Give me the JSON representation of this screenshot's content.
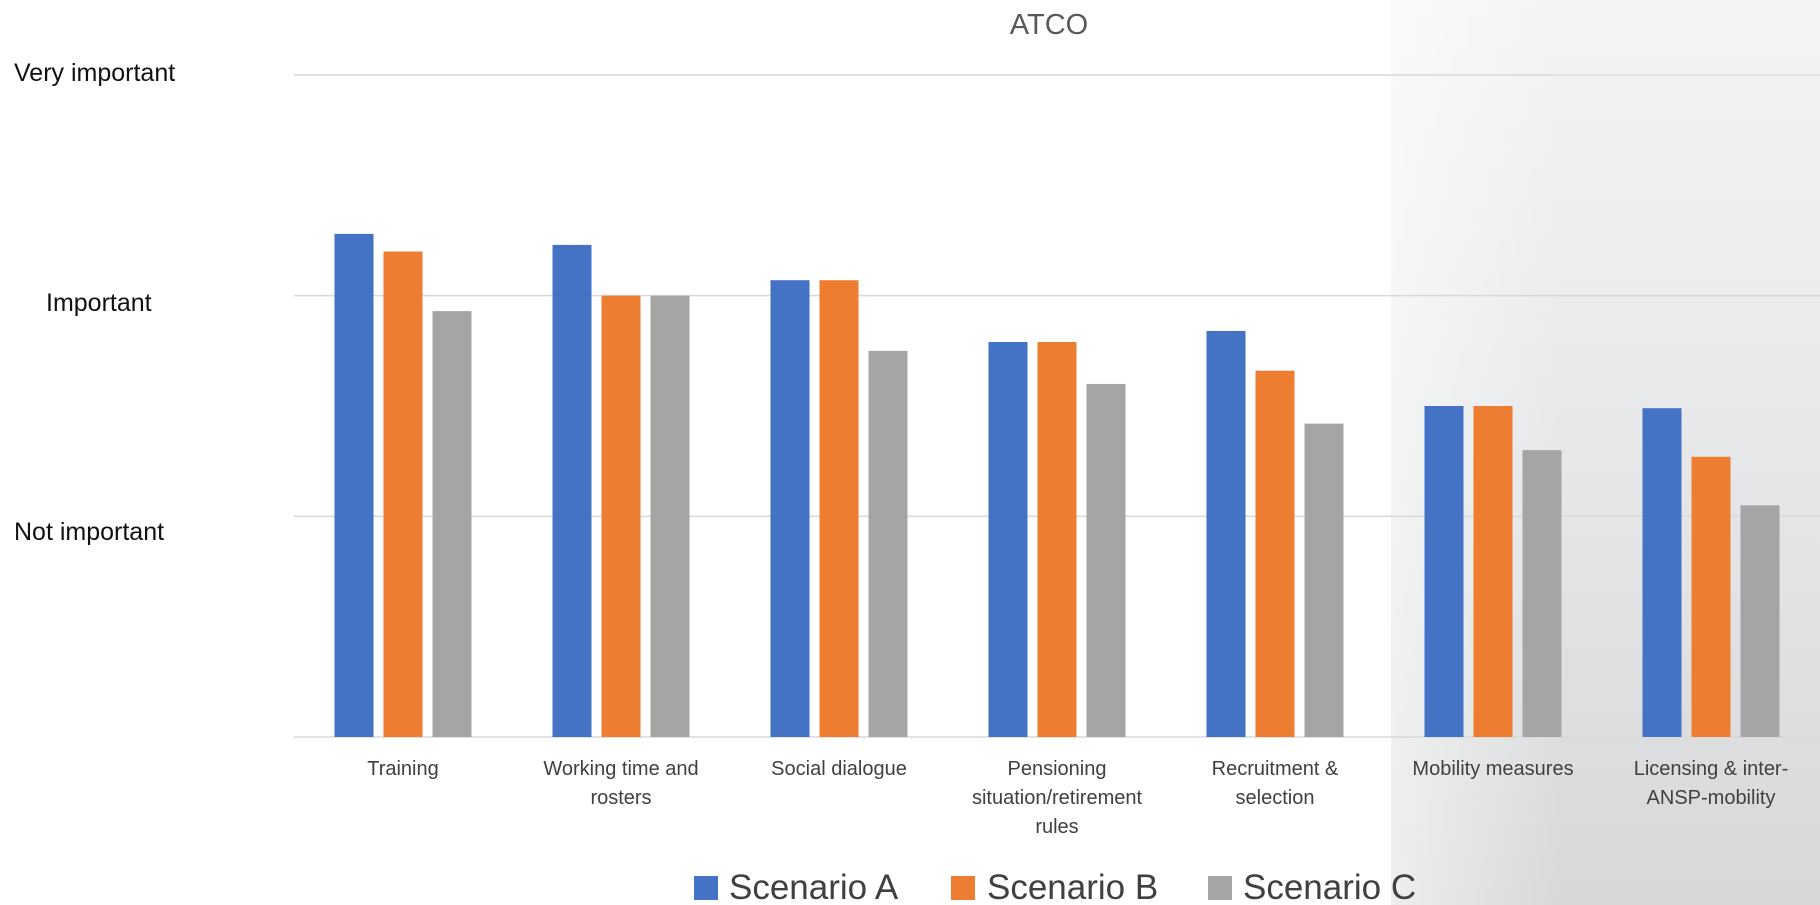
{
  "chart_data": {
    "type": "bar",
    "title": "ATCO",
    "categories": [
      "Training",
      "Working time and rosters",
      "Social dialogue",
      "Pensioning situation/retirement rules",
      "Recruitment & selection",
      "Mobility measures",
      "Licensing & inter-ANSP-mobility"
    ],
    "series": [
      {
        "name": "Scenario A",
        "color": "#4472C4",
        "values": [
          2.28,
          2.23,
          2.07,
          1.79,
          1.84,
          1.5,
          1.49
        ]
      },
      {
        "name": "Scenario B",
        "color": "#ED7D31",
        "values": [
          2.2,
          2.0,
          2.07,
          1.79,
          1.66,
          1.5,
          1.27
        ]
      },
      {
        "name": "Scenario C",
        "color": "#A5A5A5",
        "values": [
          1.93,
          2.0,
          1.75,
          1.6,
          1.42,
          1.3,
          1.05
        ]
      }
    ],
    "ylim": [
      0,
      3
    ],
    "y_category_labels": [
      "Very important",
      "Important",
      "Not important"
    ],
    "grid": true,
    "legend": "bottom"
  },
  "category_lines": [
    [
      "Training"
    ],
    [
      "Working time and",
      "rosters"
    ],
    [
      "Social dialogue"
    ],
    [
      "Pensioning",
      "situation/retirement",
      "rules"
    ],
    [
      "Recruitment &",
      "selection"
    ],
    [
      "Mobility measures"
    ],
    [
      "Licensing & inter-",
      "ANSP-mobility"
    ]
  ]
}
